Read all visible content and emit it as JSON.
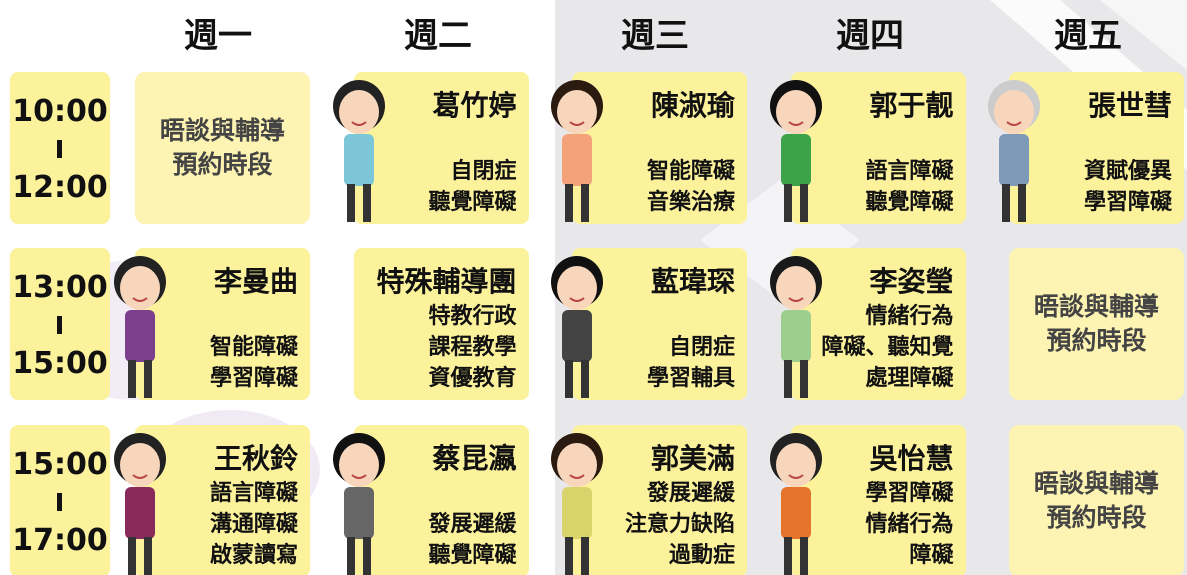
{
  "header": {
    "days": [
      "週一",
      "週二",
      "週三",
      "週四",
      "週五"
    ]
  },
  "rows": [
    {
      "time": {
        "start": "10:00",
        "end": "12:00"
      },
      "cells": [
        {
          "lines": [
            "晤談與輔導",
            "預約時段"
          ]
        },
        {
          "name": "葛竹婷",
          "lines": [
            "自閉症",
            "聽覺障礙"
          ]
        },
        {
          "name": "陳淑瑜",
          "lines": [
            "智能障礙",
            "音樂治療"
          ]
        },
        {
          "name": "郭于靓",
          "lines": [
            "語言障礙",
            "聽覺障礙"
          ]
        },
        {
          "name": "張世彗",
          "lines": [
            "資賦優異",
            "學習障礙"
          ]
        }
      ]
    },
    {
      "time": {
        "start": "13:00",
        "end": "15:00"
      },
      "cells": [
        {
          "name": "李曼曲",
          "lines": [
            "智能障礙",
            "學習障礙"
          ]
        },
        {
          "name": "特殊輔導團",
          "lines": [
            "特教行政",
            "課程教學",
            "資優教育"
          ]
        },
        {
          "name": "藍瑋琛",
          "lines": [
            "自閉症",
            "學習輔具"
          ]
        },
        {
          "name": "李姿瑩",
          "lines": [
            "情緒行為",
            "障礙、聽知覺",
            "處理障礙"
          ]
        },
        {
          "lines": [
            "晤談與輔導",
            "預約時段"
          ]
        }
      ]
    },
    {
      "time": {
        "start": "15:00",
        "end": "17:00"
      },
      "cells": [
        {
          "name": "王秋鈴",
          "lines": [
            "語言障礙",
            "溝通障礙",
            "啟蒙讀寫"
          ]
        },
        {
          "name": "蔡昆瀛",
          "lines": [
            "發展遲緩",
            "聽覺障礙"
          ]
        },
        {
          "name": "郭美滿",
          "lines": [
            "發展遲緩",
            "注意力缺陷",
            "過動症"
          ]
        },
        {
          "name": "吳怡慧",
          "lines": [
            "學習障礙",
            "情緒行為",
            "障礙"
          ]
        },
        {
          "lines": [
            "晤談與輔導",
            "預約時段"
          ]
        }
      ]
    }
  ]
}
